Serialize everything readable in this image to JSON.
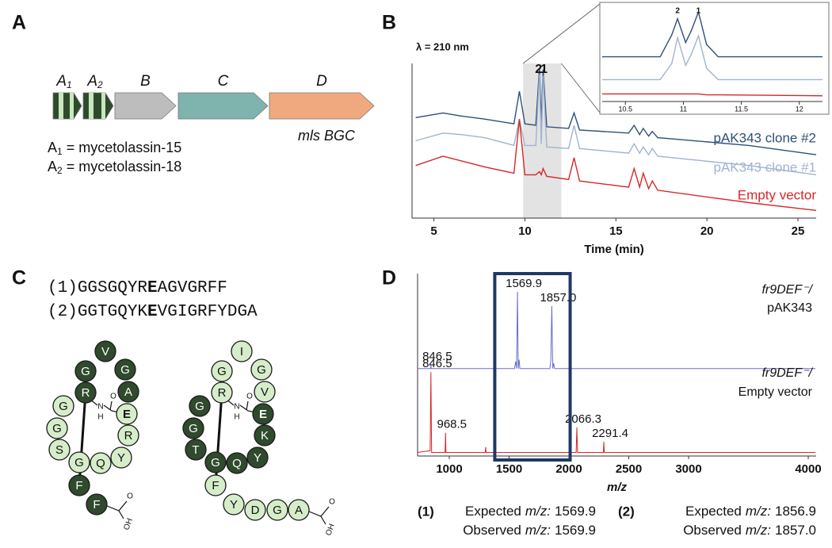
{
  "panel_labels": [
    "A",
    "B",
    "C",
    "D"
  ],
  "gene_cluster": {
    "genes": [
      {
        "name": "A",
        "sub": "1"
      },
      {
        "name": "A",
        "sub": "2"
      },
      {
        "name": "B"
      },
      {
        "name": "C"
      },
      {
        "name": "D"
      }
    ],
    "caption": "mls BGC",
    "legend": [
      {
        "name": "A",
        "sub": "1",
        "text": "= mycetolassin-15"
      },
      {
        "name": "A",
        "sub": "2",
        "text": "= mycetolassin-18"
      }
    ]
  },
  "sequences": [
    {
      "id": "(1)",
      "before": "GGSGQYR",
      "core": "E",
      "after": "AGVGRFF"
    },
    {
      "id": "(2)",
      "before": "GGTGQYK",
      "core": "E",
      "after": "VGIGRFYDGA"
    }
  ],
  "structures": [
    {
      "residues": [
        "G",
        "G",
        "S",
        "G",
        "Q",
        "Y",
        "R",
        "E",
        "A",
        "G",
        "V",
        "G",
        "R",
        "F",
        "F"
      ]
    },
    {
      "residues": [
        "G",
        "G",
        "T",
        "G",
        "Q",
        "Y",
        "K",
        "E",
        "V",
        "G",
        "I",
        "G",
        "R",
        "F",
        "Y",
        "D",
        "G",
        "A"
      ]
    }
  ],
  "amide": [
    "O",
    "N",
    "H"
  ],
  "acid": [
    "O",
    "OH"
  ],
  "chart_data": [
    {
      "type": "line",
      "title": "λ = 210 nm",
      "x_label": "Time (min)",
      "xlim": [
        3.8,
        26
      ],
      "xticks": [
        5,
        10,
        15,
        20,
        25
      ],
      "ylim": [
        0,
        100
      ],
      "highlight": [
        9.9,
        12
      ],
      "x": [
        4,
        5.5,
        6.5,
        7.8,
        9.4,
        9.7,
        10.0,
        10.6,
        10.8,
        10.9,
        11.0,
        11.2,
        12.4,
        12.7,
        13.0,
        15.7,
        16.0,
        16.3,
        16.5,
        16.8,
        17.0,
        17.3,
        22.3,
        26
      ],
      "series": [
        {
          "name": "pAK343 clone #2",
          "color": "#2f4f7a",
          "values": [
            65,
            68,
            66,
            64,
            61,
            82,
            61,
            60,
            97,
            62,
            96,
            59,
            58,
            68,
            57,
            55,
            60,
            54,
            58,
            53,
            56,
            52,
            47,
            41
          ]
        },
        {
          "name": "pAK343 clone #1",
          "color": "#9fb4cf",
          "values": [
            50,
            55,
            54,
            52,
            47,
            64,
            47,
            47,
            93,
            48,
            92,
            46,
            45,
            60,
            45,
            42,
            48,
            42,
            46,
            41,
            45,
            40,
            34,
            28
          ]
        },
        {
          "name": "Empty vector",
          "color": "#d62728",
          "values": [
            34,
            40,
            37,
            33,
            29,
            64,
            28,
            28,
            30,
            28,
            32,
            27,
            25,
            39,
            24,
            20,
            32,
            20,
            29,
            19,
            24,
            18,
            10,
            5
          ]
        }
      ],
      "annotations": [
        {
          "text": "2",
          "x": 10.75
        },
        {
          "text": "1",
          "x": 11.05
        }
      ]
    },
    {
      "type": "line",
      "xlim": [
        10.3,
        12.2
      ],
      "xticks": [
        10.5,
        11,
        11.5,
        12
      ],
      "ylim": [
        0,
        100
      ],
      "x": [
        10.3,
        10.8,
        10.9,
        10.95,
        11.02,
        11.07,
        11.13,
        11.2,
        11.3,
        12.2
      ],
      "series": [
        {
          "color": "#2f4f7a",
          "values": [
            47,
            47,
            70,
            87,
            62,
            75,
            94,
            60,
            47,
            47
          ]
        },
        {
          "color": "#9fb4cf",
          "values": [
            23,
            23,
            40,
            67,
            38,
            50,
            69,
            35,
            23,
            23
          ]
        },
        {
          "color": "#d62728",
          "values": [
            8,
            8,
            8,
            8,
            8,
            8,
            8,
            7,
            7,
            6
          ]
        }
      ],
      "annotations": [
        {
          "text": "2",
          "x": 10.95
        },
        {
          "text": "1",
          "x": 11.13
        }
      ]
    },
    {
      "type": "spectrum",
      "x_label": "m/z",
      "xlim": [
        735,
        4066
      ],
      "xticks": [
        1000,
        1500,
        2000,
        2500,
        3000,
        4000
      ],
      "ylim": [
        0,
        100
      ],
      "highlight": [
        1380,
        2010
      ],
      "series": [
        {
          "name": [
            "fr9DEF⁻/",
            "pAK343"
          ],
          "color": "#6b6bd0",
          "x": [
            735,
            844,
            846.5,
            849,
            1545,
            1555,
            1562,
            1569.9,
            1576,
            1583,
            1590,
            1600,
            1840,
            1848,
            1857,
            1865,
            1872,
            1880,
            4060
          ],
          "values": [
            49,
            49,
            51,
            49,
            49,
            53,
            49,
            92,
            49,
            54,
            49,
            49,
            49,
            53,
            84,
            49,
            52,
            49,
            49
          ],
          "labels": [
            846.5,
            1569.9,
            {
              "value": 1857,
              "label": "1857.0"
            }
          ]
        },
        {
          "name": [
            "fr9DEF⁻/",
            "Empty vector"
          ],
          "color": "#d62728",
          "x": [
            735,
            840,
            846.5,
            852,
            965,
            968.5,
            972,
            1300,
            1304,
            1308,
            2060,
            2066.3,
            2072,
            2287,
            2291.4,
            2296,
            4060
          ],
          "values": [
            2,
            3,
            47,
            2,
            2,
            13,
            2,
            2,
            5,
            2,
            2,
            16,
            2,
            2,
            8,
            2,
            2
          ],
          "labels": [
            846.5,
            968.5,
            2066.3,
            2291.4
          ]
        }
      ]
    }
  ],
  "mass_results": [
    {
      "id": "(1)",
      "lines": [
        {
          "label": "Expected",
          "unit": "m/z:",
          "value": "1569.9"
        },
        {
          "label": "Observed",
          "unit": "m/z:",
          "value": "1569.9"
        }
      ]
    },
    {
      "id": "(2)",
      "lines": [
        {
          "label": "Expected",
          "unit": "m/z:",
          "value": "1856.9"
        },
        {
          "label": "Observed",
          "unit": "m/z:",
          "value": "1857.0"
        }
      ]
    }
  ]
}
